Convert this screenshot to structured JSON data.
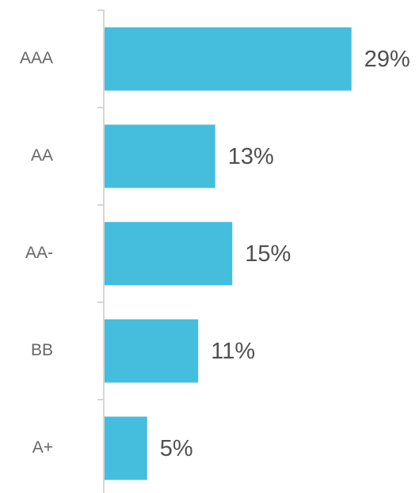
{
  "chart_data": {
    "type": "bar",
    "orientation": "horizontal",
    "categories": [
      "AAA",
      "AA",
      "AA-",
      "BB",
      "A+"
    ],
    "values": [
      29,
      13,
      15,
      11,
      5
    ],
    "value_labels": [
      "29%",
      "13%",
      "15%",
      "11%",
      "5%"
    ],
    "color": "#45bddd"
  }
}
